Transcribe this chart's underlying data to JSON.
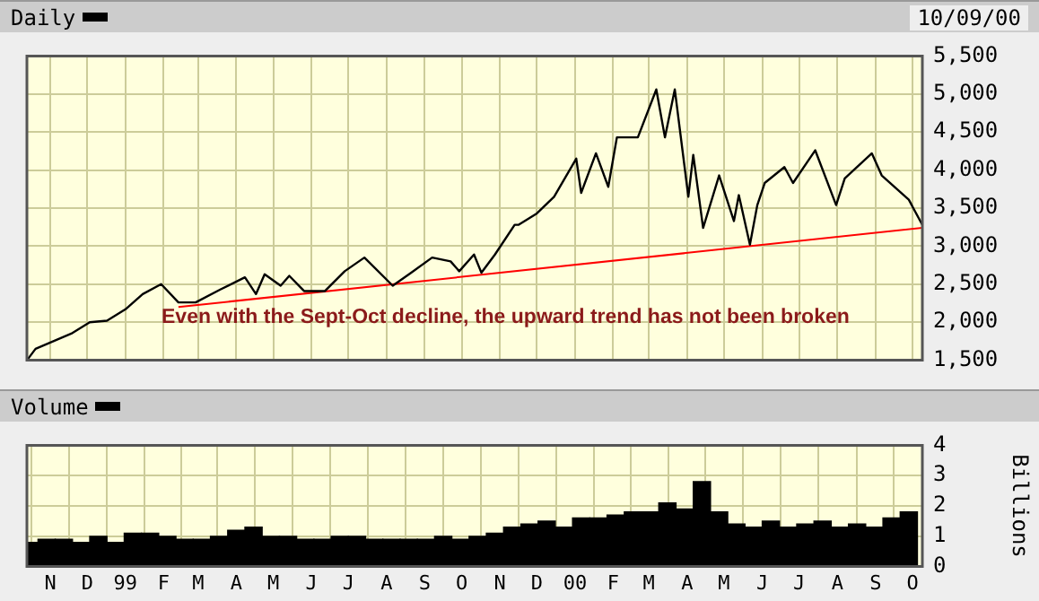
{
  "chart_data": [
    {
      "type": "line",
      "x": [
        "1998-10-14",
        "1998-10-20",
        "1998-11-18",
        "1998-12-03",
        "1998-12-17",
        "1999-01-01",
        "1999-01-15",
        "1999-01-30",
        "1999-02-13",
        "1999-02-27",
        "1999-03-19",
        "1999-04-08",
        "1999-04-17",
        "1999-04-24",
        "1999-05-07",
        "1999-05-14",
        "1999-05-26",
        "1999-06-12",
        "1999-06-28",
        "1999-07-14",
        "1999-08-06",
        "1999-08-21",
        "1999-09-07",
        "1999-09-22",
        "1999-09-29",
        "1999-10-11",
        "1999-10-17",
        "1999-10-28",
        "1999-11-13",
        "1999-11-16",
        "1999-12-01",
        "1999-12-15",
        "2000-01-02",
        "2000-01-06",
        "2000-01-18",
        "2000-01-28",
        "2000-02-04",
        "2000-02-21",
        "2000-03-07",
        "2000-03-14",
        "2000-03-22",
        "2000-04-02",
        "2000-04-06",
        "2000-04-14",
        "2000-04-27",
        "2000-05-09",
        "2000-05-13",
        "2000-05-22",
        "2000-05-28",
        "2000-06-03",
        "2000-06-19",
        "2000-06-26",
        "2000-07-14",
        "2000-07-31",
        "2000-08-07",
        "2000-08-29",
        "2000-09-06",
        "2000-09-28",
        "2000-10-09"
      ],
      "series": [
        {
          "name": "Daily",
          "color": "#000000",
          "values": [
            1520,
            1650,
            1850,
            2000,
            2020,
            2170,
            2370,
            2500,
            2260,
            2260,
            2430,
            2590,
            2370,
            2630,
            2480,
            2610,
            2410,
            2410,
            2670,
            2850,
            2480,
            2650,
            2850,
            2800,
            2670,
            2890,
            2650,
            2890,
            3280,
            3280,
            3430,
            3650,
            4150,
            3700,
            4220,
            3780,
            4430,
            4430,
            5060,
            4430,
            5060,
            3650,
            4200,
            3240,
            3930,
            3330,
            3670,
            3020,
            3540,
            3830,
            4040,
            3830,
            4260,
            3540,
            3890,
            4220,
            3930,
            3610,
            3280
          ]
        },
        {
          "type": "line",
          "color": "#ff0000",
          "x": [
            "1999-02-13",
            "2000-10-09"
          ],
          "values": [
            2200,
            3240
          ]
        }
      ],
      "xlim": [
        "1998-10-13",
        "2000-10-09"
      ],
      "xticks": [
        {
          "value": "1998-11-01",
          "label": null
        },
        {
          "value": "1998-12-01",
          "label": null
        },
        {
          "value": "1999-01-01",
          "label": null
        },
        {
          "value": "1999-02-01",
          "label": null
        },
        {
          "value": "1999-03-01",
          "label": null
        },
        {
          "value": "1999-04-01",
          "label": null
        },
        {
          "value": "1999-05-01",
          "label": null
        },
        {
          "value": "1999-06-01",
          "label": null
        },
        {
          "value": "1999-07-01",
          "label": null
        },
        {
          "value": "1999-08-01",
          "label": null
        },
        {
          "value": "1999-09-01",
          "label": null
        },
        {
          "value": "1999-10-01",
          "label": null
        },
        {
          "value": "1999-11-01",
          "label": null
        },
        {
          "value": "1999-12-01",
          "label": null
        },
        {
          "value": "2000-01-01",
          "label": null
        },
        {
          "value": "2000-02-01",
          "label": null
        },
        {
          "value": "2000-03-01",
          "label": null
        },
        {
          "value": "2000-04-01",
          "label": null
        },
        {
          "value": "2000-05-01",
          "label": null
        },
        {
          "value": "2000-06-01",
          "label": null
        },
        {
          "value": "2000-07-01",
          "label": null
        },
        {
          "value": "2000-08-01",
          "label": null
        },
        {
          "value": "2000-09-01",
          "label": null
        },
        {
          "value": "2000-10-01",
          "label": null
        }
      ],
      "ylim": [
        1500,
        5500
      ],
      "yticks": [
        {
          "value": 1500,
          "label": "1,500"
        },
        {
          "value": 2000,
          "label": "2,000"
        },
        {
          "value": 2500,
          "label": "2,500"
        },
        {
          "value": 3000,
          "label": "3,000"
        },
        {
          "value": 3500,
          "label": "3,500"
        },
        {
          "value": 4000,
          "label": "4,000"
        },
        {
          "value": 4500,
          "label": "4,500"
        },
        {
          "value": 5000,
          "label": "5,000"
        },
        {
          "value": 5500,
          "label": "5,500"
        }
      ],
      "grid": true,
      "legend": "top left",
      "tick_labels": "y",
      "annotations": [
        "Even with the Sept-Oct decline, the upward trend has not been broken",
        "10/09/00"
      ]
    },
    {
      "type": "bar",
      "x": [
        "1998-10-15",
        "1998-10-29",
        "1998-11-12",
        "1998-11-26",
        "1998-12-10",
        "1998-12-24",
        "1999-01-07",
        "1999-01-21",
        "1999-02-04",
        "1999-02-18",
        "1999-03-04",
        "1999-03-18",
        "1999-04-01",
        "1999-04-15",
        "1999-04-29",
        "1999-05-13",
        "1999-05-27",
        "1999-06-10",
        "1999-06-24",
        "1999-07-08",
        "1999-07-22",
        "1999-08-05",
        "1999-08-19",
        "1999-09-02",
        "1999-09-16",
        "1999-09-30",
        "1999-10-14",
        "1999-10-28",
        "1999-11-11",
        "1999-11-25",
        "1999-12-09",
        "1999-12-23",
        "2000-01-06",
        "2000-01-20",
        "2000-02-03",
        "2000-02-17",
        "2000-03-02",
        "2000-03-16",
        "2000-03-30",
        "2000-04-13",
        "2000-04-27",
        "2000-05-11",
        "2000-05-25",
        "2000-06-08",
        "2000-06-22",
        "2000-07-06",
        "2000-07-20",
        "2000-08-03",
        "2000-08-17",
        "2000-08-31",
        "2000-09-14",
        "2000-09-28"
      ],
      "series": [
        {
          "name": "Volume",
          "color": "#000000",
          "values": [
            0.8,
            0.9,
            0.9,
            0.8,
            1.0,
            0.8,
            1.1,
            1.1,
            1.0,
            0.9,
            0.9,
            1.0,
            1.2,
            1.3,
            1.0,
            1.0,
            0.9,
            0.9,
            1.0,
            1.0,
            0.9,
            0.9,
            0.9,
            0.9,
            1.0,
            0.9,
            1.0,
            1.1,
            1.3,
            1.4,
            1.5,
            1.3,
            1.6,
            1.6,
            1.7,
            1.8,
            1.8,
            2.1,
            1.9,
            2.8,
            1.8,
            1.4,
            1.3,
            1.5,
            1.3,
            1.4,
            1.5,
            1.3,
            1.4,
            1.3,
            1.6,
            1.8
          ]
        }
      ],
      "xlim": [
        "1998-10-13",
        "2000-10-09"
      ],
      "xticks": [
        {
          "value": "1998-11-01",
          "label": "N"
        },
        {
          "value": "1998-12-01",
          "label": "D"
        },
        {
          "value": "1999-01-01",
          "label": "99"
        },
        {
          "value": "1999-02-01",
          "label": "F"
        },
        {
          "value": "1999-03-01",
          "label": "M"
        },
        {
          "value": "1999-04-01",
          "label": "A"
        },
        {
          "value": "1999-05-01",
          "label": "M"
        },
        {
          "value": "1999-06-01",
          "label": "J"
        },
        {
          "value": "1999-07-01",
          "label": "J"
        },
        {
          "value": "1999-08-01",
          "label": "A"
        },
        {
          "value": "1999-09-01",
          "label": "S"
        },
        {
          "value": "1999-10-01",
          "label": "O"
        },
        {
          "value": "1999-11-01",
          "label": "N"
        },
        {
          "value": "1999-12-01",
          "label": "D"
        },
        {
          "value": "2000-01-01",
          "label": "00"
        },
        {
          "value": "2000-02-01",
          "label": "F"
        },
        {
          "value": "2000-03-01",
          "label": "M"
        },
        {
          "value": "2000-04-01",
          "label": "A"
        },
        {
          "value": "2000-05-01",
          "label": "M"
        },
        {
          "value": "2000-06-01",
          "label": "J"
        },
        {
          "value": "2000-07-01",
          "label": "J"
        },
        {
          "value": "2000-08-01",
          "label": "A"
        },
        {
          "value": "2000-09-01",
          "label": "S"
        },
        {
          "value": "2000-10-01",
          "label": "O"
        }
      ],
      "ylim": [
        0,
        4
      ],
      "yticks": [
        0,
        1,
        2,
        3,
        4
      ],
      "ylabel": "Billions",
      "grid": true,
      "legend": "top left"
    }
  ]
}
